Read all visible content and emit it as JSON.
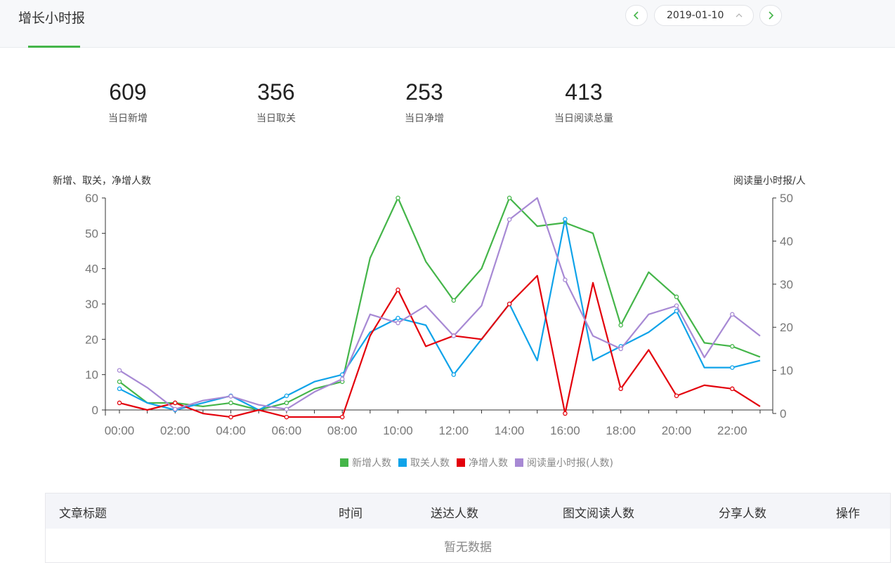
{
  "header": {
    "title": "增长小时报",
    "date": "2019-01-10"
  },
  "stats": [
    {
      "value": "609",
      "label": "当日新增"
    },
    {
      "value": "356",
      "label": "当日取关"
    },
    {
      "value": "253",
      "label": "当日净增"
    },
    {
      "value": "413",
      "label": "当日阅读总量"
    }
  ],
  "chart_data": {
    "type": "line",
    "ylabel": "新增、取关，净增人数",
    "y2label": "阅读量小时报/人",
    "ylim": [
      0,
      60
    ],
    "y2lim": [
      0,
      50
    ],
    "yticks": [
      0,
      10,
      20,
      30,
      40,
      50,
      60
    ],
    "y2ticks": [
      0,
      10,
      20,
      30,
      40,
      50
    ],
    "x": [
      "00:00",
      "01:00",
      "02:00",
      "03:00",
      "04:00",
      "05:00",
      "06:00",
      "07:00",
      "08:00",
      "09:00",
      "10:00",
      "11:00",
      "12:00",
      "13:00",
      "14:00",
      "15:00",
      "16:00",
      "17:00",
      "18:00",
      "19:00",
      "20:00",
      "21:00",
      "22:00",
      "23:00"
    ],
    "xticks": [
      "00:00",
      "02:00",
      "04:00",
      "06:00",
      "08:00",
      "10:00",
      "12:00",
      "14:00",
      "16:00",
      "18:00",
      "20:00",
      "22:00"
    ],
    "grid": false,
    "legend": "bottom",
    "series": [
      {
        "name": "新增人数",
        "color": "#44b549",
        "axis": "left",
        "values": [
          8,
          2,
          2,
          1,
          2,
          0,
          2,
          6,
          8,
          43,
          60,
          42,
          31,
          40,
          60,
          52,
          53,
          50,
          24,
          39,
          32,
          19,
          18,
          15
        ]
      },
      {
        "name": "取关人数",
        "color": "#10a3e9",
        "axis": "left",
        "values": [
          6,
          2,
          0,
          2,
          4,
          0,
          4,
          8,
          10,
          22,
          26,
          24,
          10,
          20,
          30,
          14,
          54,
          14,
          18,
          22,
          28,
          12,
          12,
          14
        ]
      },
      {
        "name": "净增人数",
        "color": "#e3000b",
        "axis": "left",
        "values": [
          2,
          0,
          2,
          -1,
          -2,
          0,
          -2,
          -2,
          -2,
          21,
          34,
          18,
          21,
          20,
          30,
          38,
          -1,
          36,
          6,
          17,
          4,
          7,
          6,
          1
        ]
      },
      {
        "name": "阅读量小时报(人数)",
        "color": "#a789d4",
        "axis": "right",
        "values": [
          10,
          6,
          1,
          3,
          4,
          2,
          1,
          5,
          8,
          23,
          21,
          25,
          18,
          25,
          45,
          50,
          31,
          18,
          15,
          23,
          25,
          13,
          23,
          18
        ]
      }
    ]
  },
  "table": {
    "headers": [
      "文章标题",
      "时间",
      "送达人数",
      "图文阅读人数",
      "分享人数",
      "操作"
    ],
    "empty_text": "暂无数据"
  }
}
